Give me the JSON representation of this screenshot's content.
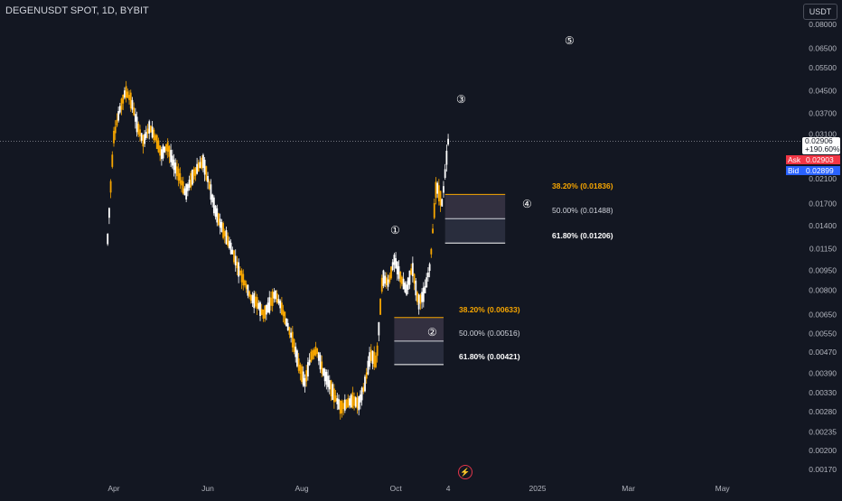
{
  "header": {
    "symbol_title": "DEGENUSDT SPOT, 1D, BYBIT",
    "currency_button": "USDT"
  },
  "price_scale": {
    "ticks": [
      "0.08000",
      "0.06500",
      "0.05500",
      "0.04500",
      "0.03700",
      "0.03100",
      "0.02100",
      "0.01700",
      "0.01400",
      "0.01150",
      "0.00950",
      "0.00800",
      "0.00650",
      "0.00550",
      "0.00470",
      "0.00390",
      "0.00330",
      "0.00280",
      "0.00235",
      "0.00200",
      "0.00170"
    ],
    "last_price": "0.02906",
    "change_pct": "+190.60%",
    "ask_label": "Ask",
    "ask_price": "0.02903",
    "bid_label": "Bid",
    "bid_price": "0.02899"
  },
  "time_scale": {
    "labels": [
      "Apr",
      "Jun",
      "Aug",
      "Oct",
      "4",
      "2025",
      "Mar",
      "May"
    ]
  },
  "annotations": {
    "wave_labels": [
      "①",
      "②",
      "③",
      "④",
      "⑤"
    ],
    "fib_upper": [
      {
        "text": "38.20% (0.01836)",
        "color": "#f7a600"
      },
      {
        "text": "50.00% (0.01488)",
        "color": "#d1d4dc"
      },
      {
        "text": "61.80% (0.01206)",
        "color": "#ffffff"
      }
    ],
    "fib_lower": [
      {
        "text": "38.20% (0.00633)",
        "color": "#f7a600"
      },
      {
        "text": "50.00% (0.00516)",
        "color": "#d1d4dc"
      },
      {
        "text": "61.80% (0.00421)",
        "color": "#ffffff"
      }
    ]
  },
  "colors": {
    "background": "#131722",
    "up_candle": "#ffffff",
    "down_candle": "#f7a600",
    "ask": "#f23645",
    "bid": "#2962ff"
  },
  "chart_data": {
    "type": "candlestick",
    "scale": "log",
    "x_start": "2024-03-28",
    "x_ticks": [
      {
        "label": "Apr",
        "date": "2024-04-01"
      },
      {
        "label": "Jun",
        "date": "2024-06-01"
      },
      {
        "label": "Aug",
        "date": "2024-08-01"
      },
      {
        "label": "Oct",
        "date": "2024-10-01"
      },
      {
        "label": "4",
        "date": "2024-11-04"
      },
      {
        "label": "2025",
        "date": "2025-01-01"
      },
      {
        "label": "Mar",
        "date": "2025-03-01"
      },
      {
        "label": "May",
        "date": "2025-05-01"
      }
    ],
    "price_anchors": [
      [
        0.0125,
        0.0115
      ],
      [
        0.03,
        0.029
      ],
      [
        0.038,
        0.03
      ],
      [
        0.045,
        0.038
      ],
      [
        0.041,
        0.035
      ],
      [
        0.033,
        0.036
      ],
      [
        0.029,
        0.033
      ],
      [
        0.033,
        0.029
      ],
      [
        0.03,
        0.032
      ],
      [
        0.026,
        0.03
      ],
      [
        0.028,
        0.0255
      ],
      [
        0.024,
        0.027
      ],
      [
        0.0215,
        0.024
      ],
      [
        0.0185,
        0.021
      ],
      [
        0.021,
        0.019
      ],
      [
        0.023,
        0.021
      ],
      [
        0.0245,
        0.023
      ],
      [
        0.02,
        0.024
      ],
      [
        0.016,
        0.0195
      ],
      [
        0.014,
        0.016
      ],
      [
        0.0125,
        0.014
      ],
      [
        0.011,
        0.0125
      ],
      [
        0.0095,
        0.011
      ],
      [
        0.0085,
        0.0095
      ],
      [
        0.0075,
        0.0085
      ],
      [
        0.0072,
        0.0076
      ],
      [
        0.0065,
        0.0075
      ],
      [
        0.007,
        0.0066
      ],
      [
        0.0078,
        0.007
      ],
      [
        0.007,
        0.0078
      ],
      [
        0.006,
        0.007
      ],
      [
        0.0052,
        0.006
      ],
      [
        0.0042,
        0.0052
      ],
      [
        0.0036,
        0.0043
      ],
      [
        0.0045,
        0.0038
      ],
      [
        0.0048,
        0.0045
      ],
      [
        0.004,
        0.0048
      ],
      [
        0.0036,
        0.004
      ],
      [
        0.0032,
        0.0036
      ],
      [
        0.0029,
        0.0032
      ],
      [
        0.003,
        0.0029
      ],
      [
        0.0031,
        0.003
      ],
      [
        0.003,
        0.0031
      ],
      [
        0.0035,
        0.003
      ],
      [
        0.0046,
        0.0035
      ],
      [
        0.0043,
        0.0046
      ],
      [
        0.009,
        0.0043
      ],
      [
        0.0085,
        0.008
      ],
      [
        0.0105,
        0.0085
      ],
      [
        0.009,
        0.0105
      ],
      [
        0.008,
        0.009
      ],
      [
        0.0098,
        0.008
      ],
      [
        0.0072,
        0.0095
      ],
      [
        0.0078,
        0.0072
      ],
      [
        0.01,
        0.0078
      ],
      [
        0.02,
        0.01
      ],
      [
        0.017,
        0.0185
      ],
      [
        0.029,
        0.017
      ]
    ],
    "price_range": [
      0.0017,
      0.08
    ],
    "fib_levels_upper": [
      0.01836,
      0.01488,
      0.01206
    ],
    "fib_levels_lower": [
      0.00633,
      0.00516,
      0.00421
    ],
    "last_price": 0.02906
  }
}
